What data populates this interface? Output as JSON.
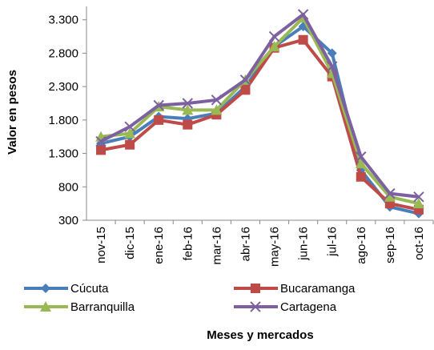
{
  "chart_data": {
    "type": "line",
    "y_label": "Valor en pesos",
    "x_label": "Meses  y mercados",
    "categories": [
      "nov-15",
      "dic-15",
      "ene-16",
      "feb-16",
      "mar-16",
      "abr-16",
      "may-16",
      "jun-16",
      "jul-16",
      "ago-16",
      "sep-16",
      "oct-16"
    ],
    "series": [
      {
        "name": "Cúcuta",
        "color": "#4a7ebb",
        "marker": "diamond",
        "values": [
          1450,
          1550,
          1850,
          1820,
          1900,
          2300,
          2900,
          3200,
          2800,
          1050,
          500,
          400
        ]
      },
      {
        "name": "Bucaramanga",
        "color": "#be4b48",
        "marker": "square",
        "values": [
          1350,
          1430,
          1800,
          1730,
          1880,
          2250,
          2880,
          3000,
          2450,
          950,
          550,
          460
        ]
      },
      {
        "name": "Barranquilla",
        "color": "#98b954",
        "marker": "triangle",
        "values": [
          1550,
          1600,
          2000,
          1950,
          1950,
          2400,
          2900,
          3330,
          2500,
          1150,
          650,
          550
        ]
      },
      {
        "name": "Cartagena",
        "color": "#7d60a0",
        "marker": "x",
        "values": [
          1480,
          1700,
          2020,
          2050,
          2100,
          2400,
          3050,
          3380,
          2600,
          1250,
          700,
          650
        ]
      }
    ],
    "ylim": [
      300,
      3500
    ],
    "yticks": [
      300,
      800,
      {
        "value": 1300,
        "label": "1.300"
      },
      {
        "value": 1800,
        "label": "1.800"
      },
      {
        "value": 2300,
        "label": "2.300"
      },
      {
        "value": 2800,
        "label": "2.800"
      },
      {
        "value": 3300,
        "label": "3.300"
      }
    ]
  }
}
